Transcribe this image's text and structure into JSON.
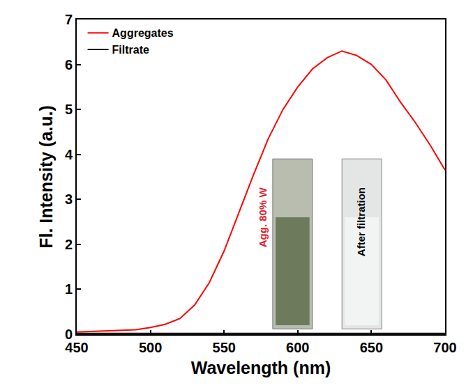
{
  "chart_data": {
    "type": "line",
    "x_label": "Wavelength (nm)",
    "y_label": "Fl. Intensity (a.u.)",
    "x": [
      450,
      460,
      470,
      480,
      490,
      500,
      510,
      520,
      530,
      540,
      550,
      560,
      570,
      580,
      590,
      600,
      610,
      620,
      630,
      640,
      650,
      660,
      670,
      680,
      690,
      700
    ],
    "series": [
      {
        "name": "Aggregates",
        "color": "#ff0000",
        "line_style": "solid",
        "values": [
          0.05,
          0.06,
          0.07,
          0.08,
          0.1,
          0.15,
          0.22,
          0.35,
          0.65,
          1.15,
          1.85,
          2.7,
          3.55,
          4.35,
          5.0,
          5.5,
          5.9,
          6.15,
          6.3,
          6.2,
          6.0,
          5.65,
          5.15,
          4.7,
          4.2,
          3.65
        ]
      },
      {
        "name": "Filtrate",
        "color": "#000000",
        "line_style": "solid",
        "values": [
          0.02,
          0.02,
          0.02,
          0.02,
          0.02,
          0.02,
          0.02,
          0.02,
          0.02,
          0.02,
          0.02,
          0.02,
          0.02,
          0.02,
          0.02,
          0.02,
          0.02,
          0.02,
          0.02,
          0.02,
          0.02,
          0.02,
          0.02,
          0.02,
          0.02,
          0.02
        ]
      }
    ],
    "xlim": [
      450,
      700
    ],
    "xticks": [
      450,
      500,
      550,
      600,
      650,
      700
    ],
    "ylim": [
      0,
      7
    ],
    "yticks": [
      0,
      1,
      2,
      3,
      4,
      5,
      6,
      7
    ],
    "grid": false,
    "legend": "upper left",
    "annotations": [
      {
        "text": "Agg. 80% W",
        "color": "#e0202a"
      },
      {
        "text": "After filtration",
        "color": "#000000"
      }
    ]
  }
}
